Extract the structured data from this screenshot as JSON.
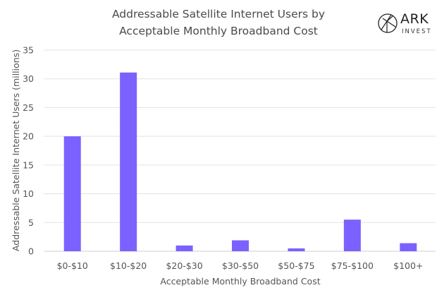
{
  "chart_data": {
    "type": "bar",
    "title": "Addressable Satellite Internet Users by Acceptable Monthly Broadband Cost",
    "title_lines": [
      "Addressable Satellite Internet Users by",
      "Acceptable Monthly Broadband Cost"
    ],
    "xlabel": "Acceptable Monthly Broadband Cost",
    "ylabel": "Addressable Satellite Internet Users (millions)",
    "categories": [
      "$0-$10",
      "$10-$20",
      "$20-$30",
      "$30-$50",
      "$50-$75",
      "$75-$100",
      "$100+"
    ],
    "values": [
      20.0,
      31.1,
      1.0,
      1.9,
      0.5,
      5.5,
      1.4
    ],
    "ylim": [
      0,
      35
    ],
    "yticks": [
      0,
      5,
      10,
      15,
      20,
      25,
      30,
      35
    ],
    "grid": true,
    "legend": "none",
    "bar_color": "#7B61FF"
  },
  "branding": {
    "logo_name": "ARK",
    "logo_sub": "INVEST"
  }
}
